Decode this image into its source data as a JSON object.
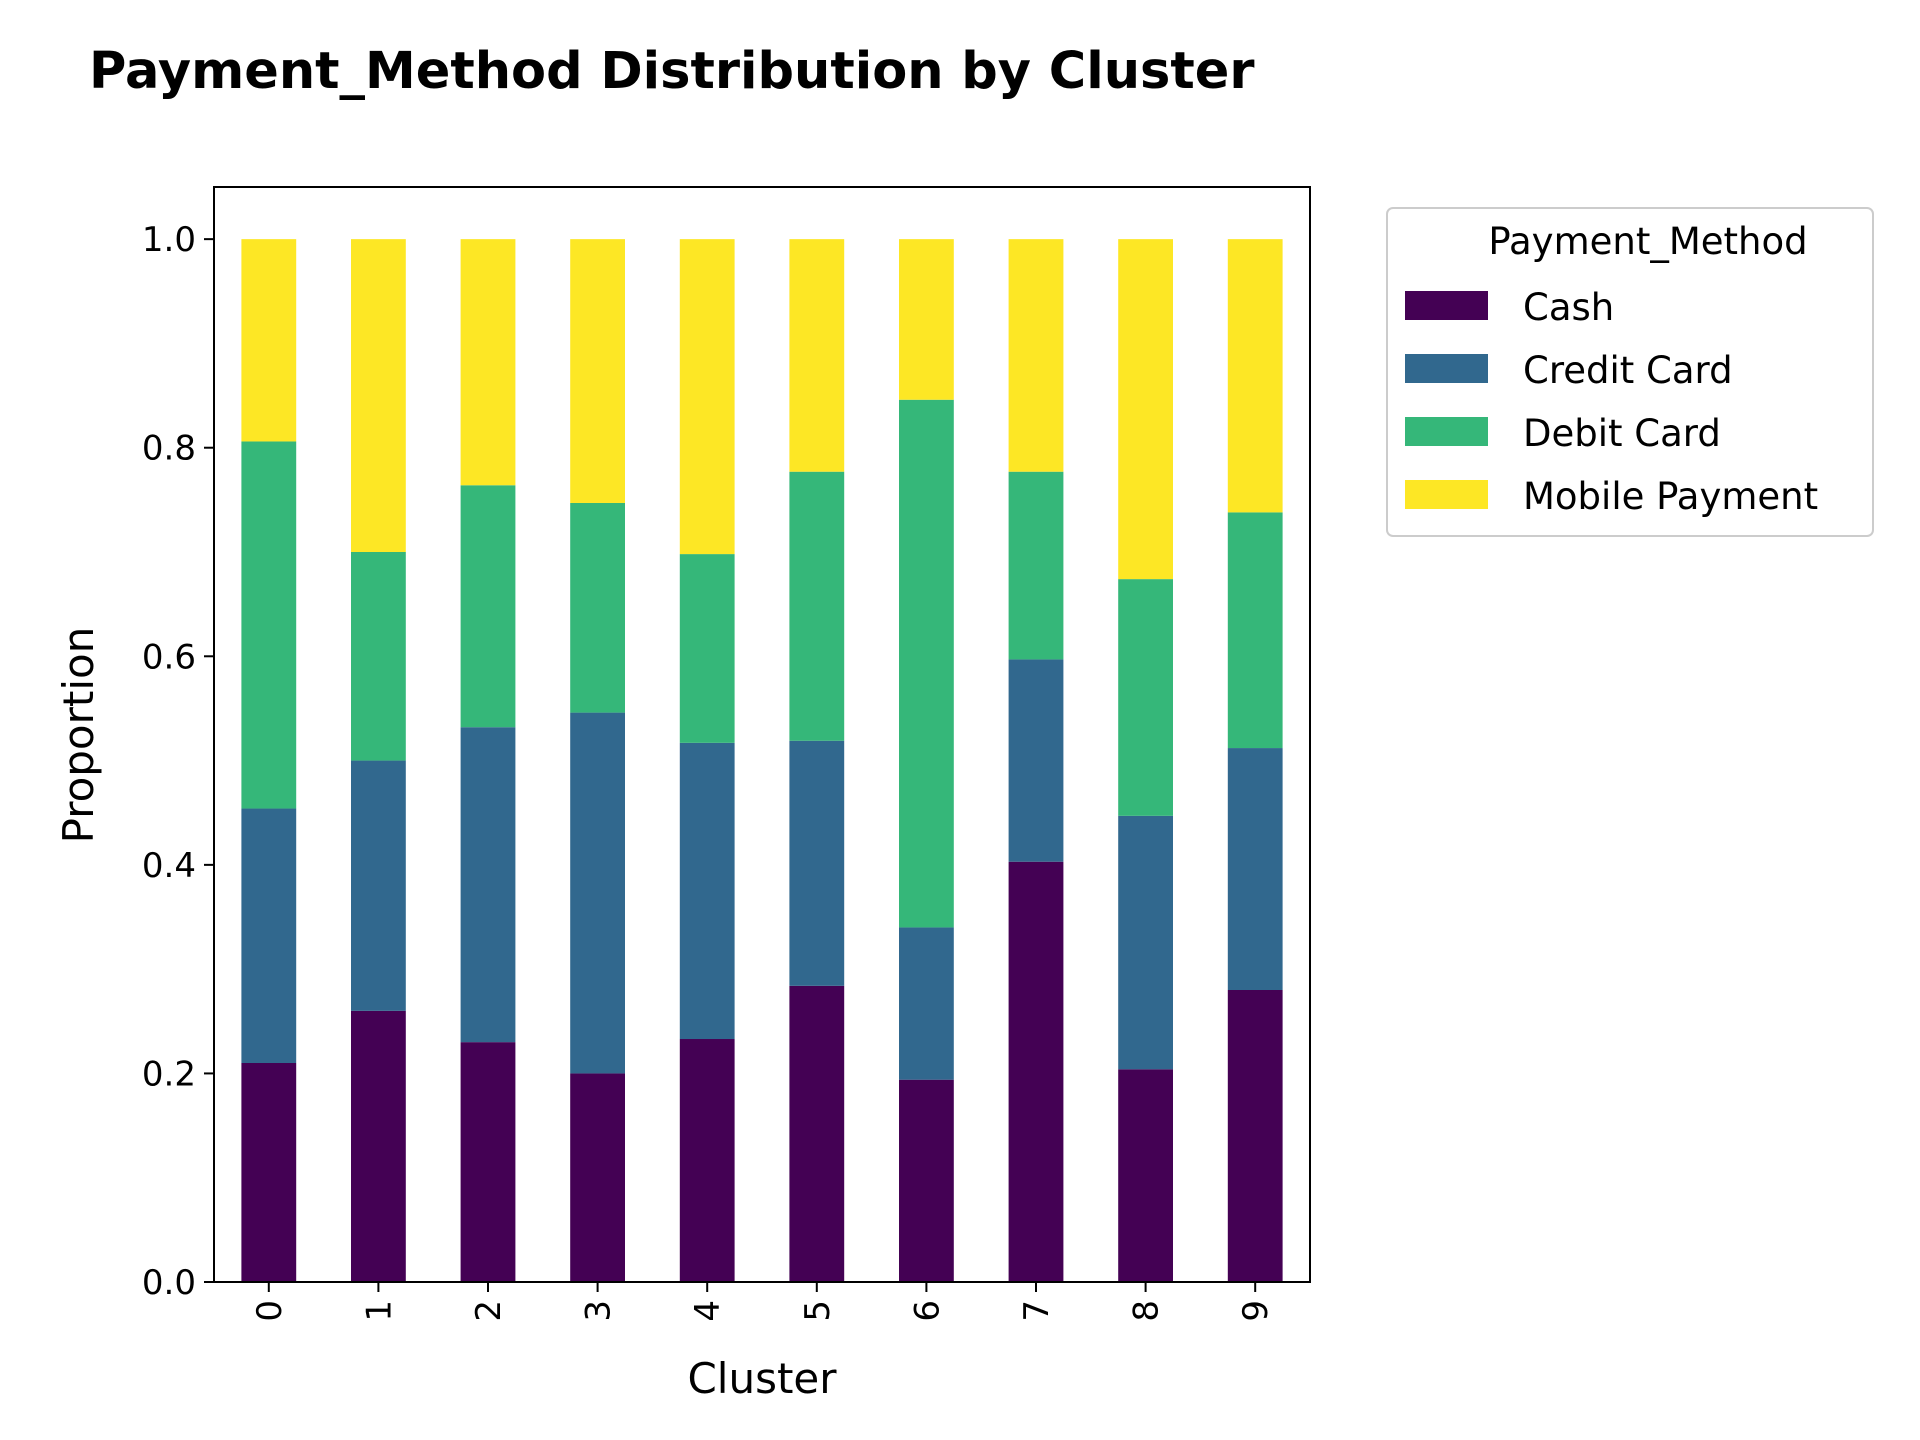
{
  "chart_data": {
    "type": "bar",
    "stacked": true,
    "title": "Payment_Method Distribution by Cluster",
    "xlabel": "Cluster",
    "ylabel": "Proportion",
    "ylim": [
      0,
      1.05
    ],
    "yticks": [
      "0.0",
      "0.2",
      "0.4",
      "0.6",
      "0.8",
      "1.0"
    ],
    "categories": [
      "0",
      "1",
      "2",
      "3",
      "4",
      "5",
      "6",
      "7",
      "8",
      "9"
    ],
    "grid": false,
    "legend": {
      "title": "Payment_Method",
      "placement": "outside-top-right"
    },
    "series": [
      {
        "name": "Cash",
        "color": "#440154",
        "values": [
          0.21,
          0.26,
          0.23,
          0.2,
          0.233,
          0.284,
          0.194,
          0.403,
          0.204,
          0.28
        ]
      },
      {
        "name": "Credit Card",
        "color": "#31688e",
        "values": [
          0.244,
          0.24,
          0.302,
          0.346,
          0.284,
          0.235,
          0.146,
          0.194,
          0.243,
          0.232
        ]
      },
      {
        "name": "Debit Card",
        "color": "#35b779",
        "values": [
          0.352,
          0.2,
          0.232,
          0.201,
          0.181,
          0.258,
          0.506,
          0.18,
          0.227,
          0.226
        ]
      },
      {
        "name": "Mobile Payment",
        "color": "#fde725",
        "values": [
          0.194,
          0.3,
          0.236,
          0.253,
          0.302,
          0.223,
          0.154,
          0.223,
          0.326,
          0.262
        ]
      }
    ]
  }
}
